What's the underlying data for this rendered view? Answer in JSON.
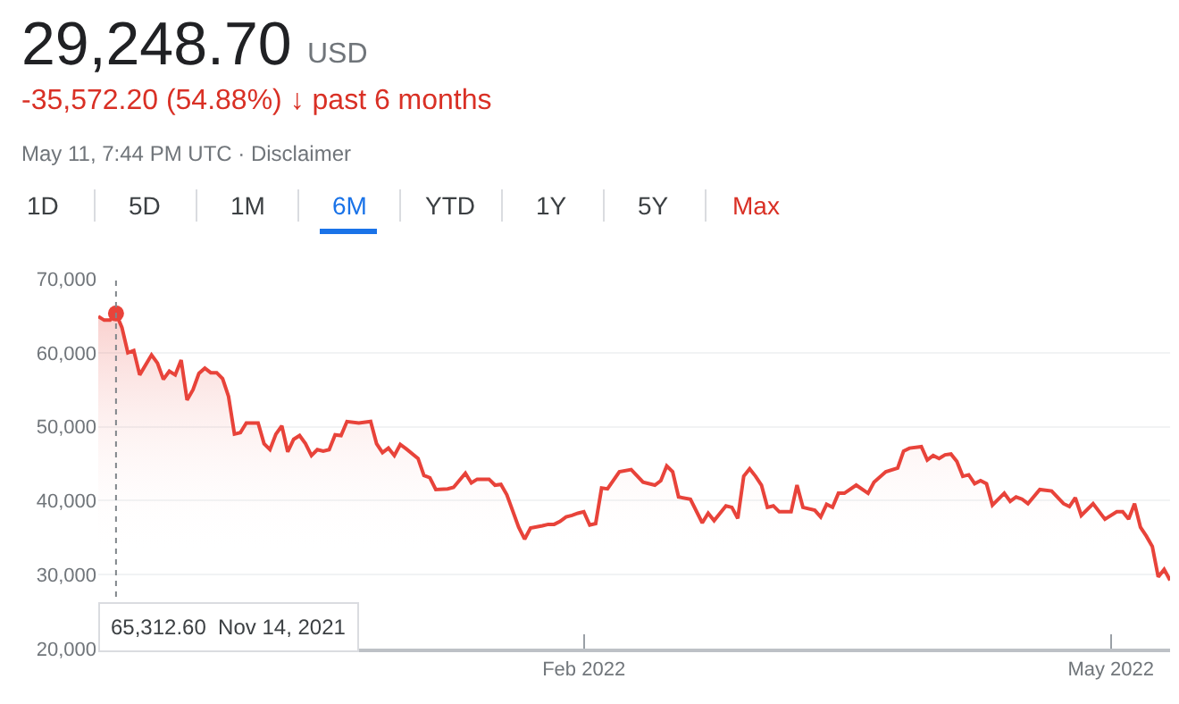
{
  "chart_data": {
    "type": "area",
    "title": "29,248.70",
    "subtitle": "-35,572.20 (54.88%) ↓ past 6 months",
    "annotations": [
      "USD",
      "May 11, 7:44 PM UTC · Disclaimer",
      "1D",
      "5D",
      "1M",
      "6M",
      "YTD",
      "1Y",
      "5Y",
      "Max",
      "65,312.60  Nov 14, 2021"
    ],
    "ref_lines": [
      {
        "axis": "x",
        "value": "2021-11-14",
        "color": "#80868b",
        "line_style": "dotted"
      }
    ],
    "x": [
      "2021-11-11",
      "2021-11-12",
      "2021-11-13",
      "2021-11-14",
      "2021-11-15",
      "2021-11-16",
      "2021-11-17",
      "2021-11-18",
      "2021-11-20",
      "2021-11-21",
      "2021-11-22",
      "2021-11-23",
      "2021-11-24",
      "2021-11-25",
      "2021-11-26",
      "2021-11-27",
      "2021-11-28",
      "2021-11-29",
      "2021-11-30",
      "2021-12-01",
      "2021-12-02",
      "2021-12-03",
      "2021-12-04",
      "2021-12-05",
      "2021-12-06",
      "2021-12-08",
      "2021-12-09",
      "2021-12-10",
      "2021-12-11",
      "2021-12-12",
      "2021-12-13",
      "2021-12-14",
      "2021-12-15",
      "2021-12-16",
      "2021-12-17",
      "2021-12-18",
      "2021-12-19",
      "2021-12-20",
      "2021-12-21",
      "2021-12-22",
      "2021-12-23",
      "2021-12-25",
      "2021-12-27",
      "2021-12-28",
      "2021-12-29",
      "2021-12-30",
      "2021-12-31",
      "2022-01-01",
      "2022-01-02",
      "2022-01-04",
      "2022-01-05",
      "2022-01-06",
      "2022-01-07",
      "2022-01-09",
      "2022-01-10",
      "2022-01-12",
      "2022-01-13",
      "2022-01-14",
      "2022-01-16",
      "2022-01-17",
      "2022-01-18",
      "2022-01-19",
      "2022-01-21",
      "2022-01-22",
      "2022-01-23",
      "2022-01-25",
      "2022-01-26",
      "2022-01-27",
      "2022-01-28",
      "2022-01-29",
      "2022-01-30",
      "2022-01-31",
      "2022-02-01",
      "2022-02-02",
      "2022-02-03",
      "2022-02-04",
      "2022-02-05",
      "2022-02-07",
      "2022-02-09",
      "2022-02-11",
      "2022-02-13",
      "2022-02-14",
      "2022-02-15",
      "2022-02-16",
      "2022-02-17",
      "2022-02-19",
      "2022-02-21",
      "2022-02-22",
      "2022-02-23",
      "2022-02-25",
      "2022-02-26",
      "2022-02-27",
      "2022-02-28",
      "2022-03-01",
      "2022-03-02",
      "2022-03-03",
      "2022-03-04",
      "2022-03-05",
      "2022-03-06",
      "2022-03-08",
      "2022-03-09",
      "2022-03-10",
      "2022-03-12",
      "2022-03-13",
      "2022-03-14",
      "2022-03-15",
      "2022-03-16",
      "2022-03-17",
      "2022-03-19",
      "2022-03-21",
      "2022-03-22",
      "2022-03-24",
      "2022-03-26",
      "2022-03-27",
      "2022-03-28",
      "2022-03-30",
      "2022-03-31",
      "2022-04-01",
      "2022-04-02",
      "2022-04-03",
      "2022-04-04",
      "2022-04-05",
      "2022-04-06",
      "2022-04-07",
      "2022-04-08",
      "2022-04-09",
      "2022-04-10",
      "2022-04-11",
      "2022-04-13",
      "2022-04-14",
      "2022-04-15",
      "2022-04-16",
      "2022-04-17",
      "2022-04-19",
      "2022-04-21",
      "2022-04-23",
      "2022-04-24",
      "2022-04-25",
      "2022-04-26",
      "2022-04-28",
      "2022-04-30",
      "2022-05-02",
      "2022-05-03",
      "2022-05-04",
      "2022-05-05",
      "2022-05-06",
      "2022-05-07",
      "2022-05-08",
      "2022-05-09",
      "2022-05-10",
      "2022-05-11"
    ],
    "series": [
      {
        "color": "#e8433a",
        "values": [
          64900,
          64400,
          64400,
          65312.6,
          63400,
          60000,
          60300,
          57000,
          59700,
          58600,
          56400,
          57500,
          57000,
          59000,
          53600,
          55000,
          57200,
          57900,
          57300,
          57300,
          56500,
          54100,
          49000,
          49200,
          50500,
          50500,
          47700,
          46900,
          49000,
          50100,
          46600,
          48300,
          48800,
          47700,
          46100,
          46900,
          46700,
          46900,
          48900,
          48800,
          50700,
          50500,
          50700,
          47700,
          46500,
          47100,
          46100,
          47600,
          47000,
          45700,
          43400,
          43100,
          41500,
          41600,
          41800,
          43700,
          42400,
          42900,
          42900,
          42100,
          42200,
          40800,
          36400,
          34800,
          36300,
          36600,
          36800,
          36800,
          37200,
          37800,
          38000,
          38300,
          38500,
          36700,
          36900,
          41700,
          41600,
          43900,
          44200,
          42500,
          42100,
          42700,
          44700,
          43900,
          40500,
          40200,
          37000,
          38300,
          37300,
          39300,
          39100,
          37600,
          43300,
          44300,
          43300,
          42100,
          39100,
          39300,
          38500,
          38500,
          42100,
          39100,
          38700,
          37800,
          39500,
          39100,
          41000,
          41000,
          42100,
          41000,
          42500,
          43900,
          44400,
          46700,
          47100,
          47300,
          45500,
          46100,
          45700,
          46200,
          46300,
          45300,
          43300,
          43500,
          42300,
          42700,
          42300,
          39400,
          41000,
          39900,
          40500,
          40200,
          39600,
          41500,
          41300,
          39600,
          39200,
          40400,
          38000,
          39600,
          37500,
          38500,
          38500,
          37500,
          39600,
          36400,
          35200,
          33800,
          29700,
          30700,
          29248.7
        ]
      }
    ],
    "xlim": [
      "2021-11-11",
      "2022-05-11"
    ],
    "xticks": [
      {
        "value": "2022-02-01",
        "label": "Feb 2022"
      },
      {
        "value": "2022-05-01",
        "label": "May 2022"
      }
    ],
    "ylim": [
      20000,
      70000
    ],
    "yticks": [
      {
        "value": 20000,
        "label": "20,000"
      },
      {
        "value": 30000,
        "label": "30,000"
      },
      {
        "value": 40000,
        "label": "40,000"
      },
      {
        "value": 50000,
        "label": "50,000"
      },
      {
        "value": 60000,
        "label": "60,000"
      },
      {
        "value": 70000,
        "label": "70,000"
      }
    ],
    "grid": "y",
    "marker": "none",
    "line_style": "solid"
  }
}
